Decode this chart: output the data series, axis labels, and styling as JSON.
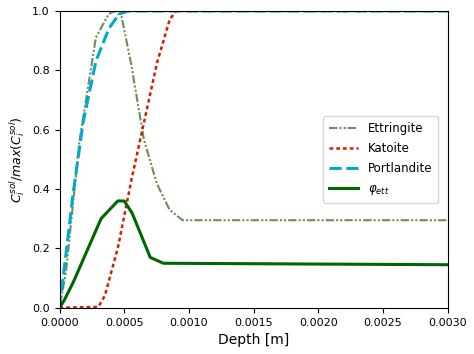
{
  "xlabel": "Depth [m]",
  "xlim": [
    0.0,
    0.003
  ],
  "ylim": [
    0.0,
    1.0
  ],
  "ettringite_color": "#6b8e5a",
  "katoite_color": "#cc2200",
  "portlandite_color": "#00aacc",
  "phi_ett_color": "#006600",
  "xticks": [
    0.0,
    0.0005,
    0.001,
    0.0015,
    0.002,
    0.0025,
    0.003
  ],
  "yticks": [
    0.0,
    0.2,
    0.4,
    0.6,
    0.8,
    1.0
  ],
  "legend_labels": [
    "Ettringite",
    "Katoite",
    "Portlandite",
    "$\\varphi_{ett}$"
  ],
  "ettringite_x": [
    0.0,
    5e-05,
    0.00015,
    0.00028,
    0.00038,
    0.00043,
    0.00048,
    0.00055,
    0.00065,
    0.00075,
    0.00085,
    0.00095,
    0.003
  ],
  "ettringite_y": [
    0.0,
    0.12,
    0.55,
    0.91,
    0.99,
    1.0,
    0.98,
    0.83,
    0.57,
    0.42,
    0.33,
    0.295,
    0.295
  ],
  "katoite_x": [
    0.0,
    0.0003,
    0.00035,
    0.00045,
    0.00055,
    0.00065,
    0.00075,
    0.00085,
    0.0009,
    0.003
  ],
  "katoite_y": [
    0.0,
    0.003,
    0.04,
    0.2,
    0.42,
    0.62,
    0.82,
    0.97,
    1.0,
    1.0
  ],
  "portlandite_x": [
    0.0,
    5e-05,
    0.0001,
    0.00018,
    0.00028,
    0.00038,
    0.00046,
    0.00053,
    0.00058,
    0.003
  ],
  "portlandite_y": [
    0.0,
    0.18,
    0.37,
    0.62,
    0.83,
    0.94,
    0.99,
    1.0,
    1.0,
    1.0
  ],
  "phi_x": [
    0.0,
    3e-05,
    0.0001,
    0.0002,
    0.00032,
    0.00045,
    0.0005,
    0.00056,
    0.0007,
    0.0008,
    0.003
  ],
  "phi_y": [
    0.0,
    0.02,
    0.08,
    0.18,
    0.3,
    0.36,
    0.36,
    0.32,
    0.17,
    0.15,
    0.145
  ]
}
